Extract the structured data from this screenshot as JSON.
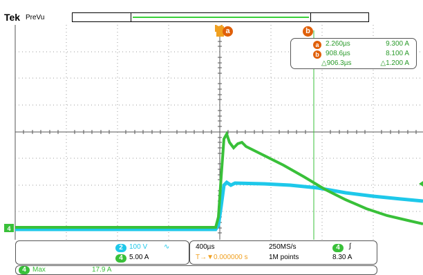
{
  "header": {
    "brand": "Tek",
    "mode": "PreVu"
  },
  "cursors": {
    "a": {
      "label": "a",
      "time": "2.260µs",
      "value": "9.300 A"
    },
    "b": {
      "label": "b",
      "time": "908.6µs",
      "value": "8.100 A"
    },
    "delta": {
      "time": "△906.3µs",
      "value": "△1.200 A"
    }
  },
  "trigger_marker": "T",
  "ground_marker": "4",
  "channels": [
    {
      "number": "2",
      "scale": "100 V",
      "coupling": "∿",
      "color": "#1ec8ea"
    },
    {
      "number": "4",
      "scale": "5.00 A",
      "color": "#39c039"
    }
  ],
  "timebase": {
    "scale": "400µs",
    "position": "T→▼0.000000 s",
    "sample_rate": "250MS/s",
    "record_length": "1M points"
  },
  "trigger": {
    "source": "4",
    "slope": "∫",
    "level": "8.30 A"
  },
  "measurement": {
    "source": "4",
    "name": "Max",
    "value": "17.9 A"
  },
  "colors": {
    "ch2": "#1ec8ea",
    "ch4": "#39c039",
    "cursor": "#e0600a",
    "trigger": "#f0a020",
    "grid": "#888888"
  }
}
